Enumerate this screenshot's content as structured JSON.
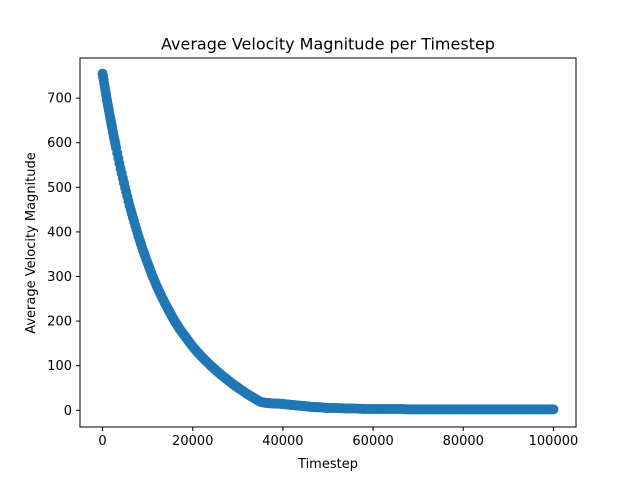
{
  "chart_data": {
    "type": "scatter",
    "title": "Average Velocity Magnitude per Timestep",
    "xlabel": "Timestep",
    "ylabel": "Average Velocity Magnitude",
    "xlim": [
      -5000,
      105000
    ],
    "ylim": [
      -37.5,
      790
    ],
    "xticks": [
      0,
      20000,
      40000,
      60000,
      80000,
      100000
    ],
    "xtick_labels": [
      "0",
      "20000",
      "40000",
      "60000",
      "80000",
      "100000"
    ],
    "yticks": [
      0,
      100,
      200,
      300,
      400,
      500,
      600,
      700
    ],
    "ytick_labels": [
      "0",
      "100",
      "200",
      "300",
      "400",
      "500",
      "600",
      "700"
    ],
    "grid": false,
    "legend": "none",
    "marker_color": "#1f77b4",
    "series": [
      {
        "x": [
          0,
          500,
          1000,
          1500,
          2000,
          2500,
          3000,
          4000,
          5000,
          6000,
          7000,
          8000,
          9000,
          10000,
          11000,
          12000,
          13000,
          14000,
          15000,
          16000,
          17000,
          18000,
          19000,
          20000,
          21000,
          22000,
          23000,
          24000,
          25000,
          26000,
          27000,
          28000,
          29000,
          30000,
          31000,
          32000,
          33000,
          34000,
          35000,
          36000,
          37000,
          38000,
          39000,
          40000,
          41000,
          42000,
          43000,
          44000,
          45000,
          46000,
          47000,
          48000,
          49000,
          50000,
          52000,
          54000,
          56000,
          58000,
          60000,
          62000,
          64000,
          66000,
          68000,
          70000,
          72000,
          74000,
          76000,
          78000,
          80000,
          82000,
          84000,
          86000,
          88000,
          90000,
          92000,
          94000,
          96000,
          98000,
          100000
        ],
        "values": [
          755,
          725,
          695,
          667,
          640,
          614,
          589,
          542,
          499,
          459,
          423,
          389,
          358,
          330,
          303,
          279,
          257,
          237,
          218,
          200,
          184,
          170,
          156,
          143,
          131,
          120,
          110,
          100,
          91,
          82,
          74,
          66,
          58,
          51,
          44,
          37,
          31,
          25,
          19,
          17,
          16,
          15,
          15,
          14,
          13,
          12,
          11,
          10,
          9,
          8,
          7,
          7,
          6,
          5,
          5,
          4,
          4,
          3,
          3,
          3,
          3,
          3,
          2,
          2,
          2,
          2,
          2,
          2,
          2,
          2,
          2,
          2,
          2,
          2,
          2,
          2,
          2,
          2,
          2
        ]
      }
    ]
  }
}
